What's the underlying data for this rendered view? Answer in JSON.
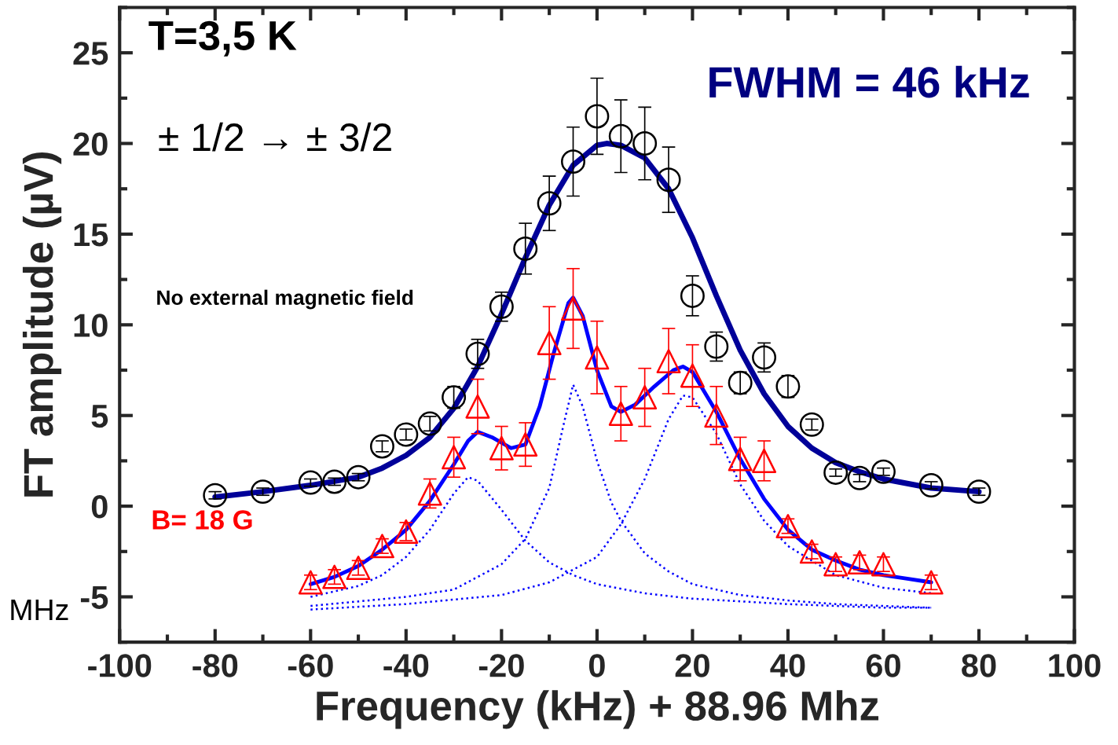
{
  "chart_data": {
    "type": "scatter",
    "xlabel": "Frequency (kHz) + 88.96 Mhz",
    "ylabel": "FT amplitude (µV)",
    "xlim": [
      -100,
      100
    ],
    "ylim": [
      -7.5,
      27.5
    ],
    "xticks": [
      -100,
      -80,
      -60,
      -40,
      -20,
      0,
      20,
      40,
      60,
      80,
      100
    ],
    "yticks": [
      -5,
      0,
      5,
      10,
      15,
      20,
      25
    ],
    "grid": false,
    "legend": false,
    "annotations": [
      "T=3,5 K",
      "± 1/2 → ± 3/2",
      "No external magnetic field",
      "B= 18 G",
      "FWHM = 46 kHz",
      "MHz"
    ],
    "series": [
      {
        "type": "line",
        "color": "#000099",
        "line_style": "solid",
        "x": [
          -80,
          -70,
          -60,
          -50,
          -45,
          -40,
          -35,
          -30,
          -25,
          -20,
          -15,
          -10,
          -5,
          0,
          2,
          5,
          10,
          15,
          20,
          25,
          30,
          35,
          40,
          45,
          50,
          55,
          60,
          70,
          80
        ],
        "values": [
          0.5,
          0.8,
          1.15,
          1.6,
          2.1,
          2.8,
          3.8,
          5.4,
          7.7,
          10.6,
          13.7,
          16.6,
          18.8,
          19.9,
          20.0,
          19.9,
          19.2,
          17.5,
          14.8,
          11.6,
          8.6,
          6.2,
          4.4,
          3.2,
          2.4,
          1.9,
          1.5,
          1.0,
          0.8
        ]
      },
      {
        "type": "line",
        "color": "#0000ff",
        "line_style": "solid",
        "x": [
          -60,
          -55,
          -50,
          -45,
          -40,
          -35,
          -30,
          -27,
          -25,
          -22,
          -18,
          -15,
          -12,
          -9,
          -6,
          -5,
          -3,
          0,
          3,
          5,
          8,
          12,
          16,
          18,
          20,
          25,
          30,
          35,
          40,
          45,
          50,
          55,
          60,
          65,
          70
        ],
        "values": [
          -4.3,
          -3.9,
          -3.3,
          -2.4,
          -1.3,
          0.3,
          2.3,
          3.6,
          4.1,
          3.8,
          3.2,
          3.4,
          5.5,
          8.5,
          11.2,
          11.5,
          10.5,
          7.5,
          5.5,
          5.2,
          5.6,
          6.6,
          7.5,
          7.7,
          7.4,
          5.2,
          2.6,
          0.4,
          -1.3,
          -2.4,
          -3.0,
          -3.5,
          -3.8,
          -4.0,
          -4.2
        ]
      },
      {
        "type": "line",
        "color": "#0000ff",
        "line_style": "dotted",
        "x": [
          -60,
          -50,
          -45,
          -40,
          -35,
          -30,
          -27,
          -25,
          -20,
          -15,
          -10,
          -5,
          0,
          10,
          20,
          40,
          60,
          70
        ],
        "values": [
          -5.0,
          -4.4,
          -3.8,
          -2.8,
          -1.3,
          0.7,
          1.6,
          1.4,
          -0.2,
          -1.9,
          -3.1,
          -3.8,
          -4.3,
          -4.8,
          -5.1,
          -5.4,
          -5.6,
          -5.6
        ]
      },
      {
        "type": "line",
        "color": "#0000ff",
        "line_style": "dotted",
        "x": [
          -60,
          -40,
          -30,
          -20,
          -15,
          -10,
          -7,
          -5,
          -3,
          0,
          3,
          5,
          10,
          15,
          20,
          30,
          40,
          50,
          70
        ],
        "values": [
          -5.5,
          -5.0,
          -4.6,
          -3.2,
          -1.8,
          1.0,
          4.5,
          6.7,
          5.5,
          2.5,
          0.2,
          -0.8,
          -2.6,
          -3.6,
          -4.3,
          -4.9,
          -5.2,
          -5.4,
          -5.6
        ]
      },
      {
        "type": "line",
        "color": "#0000ff",
        "line_style": "dotted",
        "x": [
          -60,
          -40,
          -20,
          -10,
          0,
          5,
          10,
          15,
          18,
          20,
          25,
          30,
          35,
          40,
          50,
          60,
          70
        ],
        "values": [
          -5.7,
          -5.4,
          -4.9,
          -4.2,
          -2.8,
          -1.0,
          1.5,
          4.8,
          6.1,
          6.0,
          4.0,
          1.2,
          -0.8,
          -2.2,
          -3.8,
          -4.5,
          -4.8
        ]
      },
      {
        "color": "#000000",
        "marker": "circle",
        "x": [
          -80,
          -70,
          -60,
          -55,
          -50,
          -45,
          -40,
          -35,
          -30,
          -25,
          -20,
          -15,
          -10,
          -5,
          0,
          5,
          10,
          15,
          20,
          25,
          30,
          35,
          40,
          45,
          50,
          55,
          60,
          70,
          80
        ],
        "values": [
          0.6,
          0.8,
          1.3,
          1.35,
          1.6,
          3.3,
          3.95,
          4.55,
          6.0,
          8.4,
          11.0,
          14.2,
          16.7,
          19.0,
          21.5,
          20.4,
          20.0,
          18.0,
          11.6,
          8.8,
          6.8,
          8.2,
          6.6,
          4.5,
          1.85,
          1.55,
          1.9,
          1.15,
          0.8
        ],
        "errors": [
          0.2,
          0.2,
          0.2,
          0.2,
          0.2,
          0.3,
          0.3,
          0.4,
          0.6,
          0.8,
          0.8,
          1.4,
          1.5,
          1.9,
          2.1,
          2.0,
          2.0,
          1.8,
          1.1,
          0.8,
          0.6,
          0.8,
          0.6,
          0.3,
          0.2,
          0.2,
          0.2,
          0.2,
          0.2
        ]
      },
      {
        "color": "#ff0000",
        "marker": "triangle",
        "x": [
          -60,
          -55,
          -50,
          -45,
          -40,
          -35,
          -30,
          -25,
          -20,
          -15,
          -10,
          -5,
          0,
          5,
          10,
          15,
          20,
          25,
          30,
          35,
          40,
          45,
          50,
          55,
          60,
          70
        ],
        "values": [
          -4.2,
          -3.9,
          -3.4,
          -2.2,
          -1.4,
          0.7,
          2.7,
          5.5,
          3.2,
          3.4,
          9.0,
          10.9,
          8.2,
          5.1,
          6.0,
          8.0,
          7.2,
          5.0,
          2.6,
          2.5,
          -1.1,
          -2.5,
          -3.2,
          -3.1,
          -3.2,
          -4.2
        ],
        "errors": [
          0.4,
          0.4,
          0.4,
          0.4,
          0.5,
          0.8,
          1.1,
          1.5,
          1.2,
          1.2,
          2.0,
          2.2,
          2.0,
          1.5,
          1.6,
          1.8,
          1.7,
          1.6,
          1.2,
          1.1,
          0.4,
          0.4,
          0.4,
          0.4,
          0.4,
          0.4
        ]
      }
    ]
  }
}
